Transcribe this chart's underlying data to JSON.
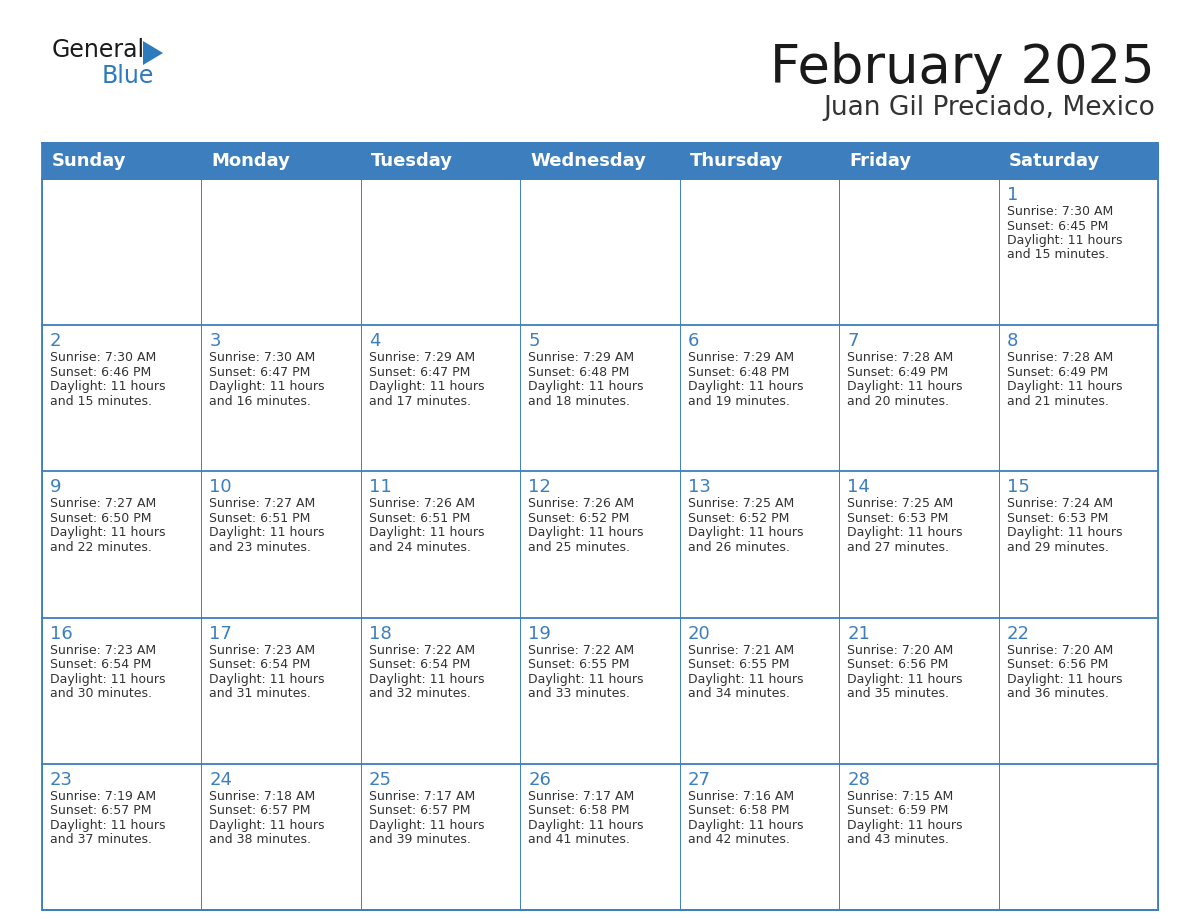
{
  "title": "February 2025",
  "subtitle": "Juan Gil Preciado, Mexico",
  "header_bg_color": "#3d7ebf",
  "header_text_color": "#ffffff",
  "border_color": "#3d7ebf",
  "title_color": "#1a1a1a",
  "subtitle_color": "#333333",
  "day_number_color": "#3d7ebf",
  "cell_text_color": "#333333",
  "logo_black": "#1a1a1a",
  "logo_blue": "#2e7abf",
  "days_of_week": [
    "Sunday",
    "Monday",
    "Tuesday",
    "Wednesday",
    "Thursday",
    "Friday",
    "Saturday"
  ],
  "calendar_data": [
    [
      null,
      null,
      null,
      null,
      null,
      null,
      {
        "day": 1,
        "sunrise": "7:30 AM",
        "sunset": "6:45 PM",
        "daylight_hrs": 11,
        "daylight_mins": 15
      }
    ],
    [
      {
        "day": 2,
        "sunrise": "7:30 AM",
        "sunset": "6:46 PM",
        "daylight_hrs": 11,
        "daylight_mins": 15
      },
      {
        "day": 3,
        "sunrise": "7:30 AM",
        "sunset": "6:47 PM",
        "daylight_hrs": 11,
        "daylight_mins": 16
      },
      {
        "day": 4,
        "sunrise": "7:29 AM",
        "sunset": "6:47 PM",
        "daylight_hrs": 11,
        "daylight_mins": 17
      },
      {
        "day": 5,
        "sunrise": "7:29 AM",
        "sunset": "6:48 PM",
        "daylight_hrs": 11,
        "daylight_mins": 18
      },
      {
        "day": 6,
        "sunrise": "7:29 AM",
        "sunset": "6:48 PM",
        "daylight_hrs": 11,
        "daylight_mins": 19
      },
      {
        "day": 7,
        "sunrise": "7:28 AM",
        "sunset": "6:49 PM",
        "daylight_hrs": 11,
        "daylight_mins": 20
      },
      {
        "day": 8,
        "sunrise": "7:28 AM",
        "sunset": "6:49 PM",
        "daylight_hrs": 11,
        "daylight_mins": 21
      }
    ],
    [
      {
        "day": 9,
        "sunrise": "7:27 AM",
        "sunset": "6:50 PM",
        "daylight_hrs": 11,
        "daylight_mins": 22
      },
      {
        "day": 10,
        "sunrise": "7:27 AM",
        "sunset": "6:51 PM",
        "daylight_hrs": 11,
        "daylight_mins": 23
      },
      {
        "day": 11,
        "sunrise": "7:26 AM",
        "sunset": "6:51 PM",
        "daylight_hrs": 11,
        "daylight_mins": 24
      },
      {
        "day": 12,
        "sunrise": "7:26 AM",
        "sunset": "6:52 PM",
        "daylight_hrs": 11,
        "daylight_mins": 25
      },
      {
        "day": 13,
        "sunrise": "7:25 AM",
        "sunset": "6:52 PM",
        "daylight_hrs": 11,
        "daylight_mins": 26
      },
      {
        "day": 14,
        "sunrise": "7:25 AM",
        "sunset": "6:53 PM",
        "daylight_hrs": 11,
        "daylight_mins": 27
      },
      {
        "day": 15,
        "sunrise": "7:24 AM",
        "sunset": "6:53 PM",
        "daylight_hrs": 11,
        "daylight_mins": 29
      }
    ],
    [
      {
        "day": 16,
        "sunrise": "7:23 AM",
        "sunset": "6:54 PM",
        "daylight_hrs": 11,
        "daylight_mins": 30
      },
      {
        "day": 17,
        "sunrise": "7:23 AM",
        "sunset": "6:54 PM",
        "daylight_hrs": 11,
        "daylight_mins": 31
      },
      {
        "day": 18,
        "sunrise": "7:22 AM",
        "sunset": "6:54 PM",
        "daylight_hrs": 11,
        "daylight_mins": 32
      },
      {
        "day": 19,
        "sunrise": "7:22 AM",
        "sunset": "6:55 PM",
        "daylight_hrs": 11,
        "daylight_mins": 33
      },
      {
        "day": 20,
        "sunrise": "7:21 AM",
        "sunset": "6:55 PM",
        "daylight_hrs": 11,
        "daylight_mins": 34
      },
      {
        "day": 21,
        "sunrise": "7:20 AM",
        "sunset": "6:56 PM",
        "daylight_hrs": 11,
        "daylight_mins": 35
      },
      {
        "day": 22,
        "sunrise": "7:20 AM",
        "sunset": "6:56 PM",
        "daylight_hrs": 11,
        "daylight_mins": 36
      }
    ],
    [
      {
        "day": 23,
        "sunrise": "7:19 AM",
        "sunset": "6:57 PM",
        "daylight_hrs": 11,
        "daylight_mins": 37
      },
      {
        "day": 24,
        "sunrise": "7:18 AM",
        "sunset": "6:57 PM",
        "daylight_hrs": 11,
        "daylight_mins": 38
      },
      {
        "day": 25,
        "sunrise": "7:17 AM",
        "sunset": "6:57 PM",
        "daylight_hrs": 11,
        "daylight_mins": 39
      },
      {
        "day": 26,
        "sunrise": "7:17 AM",
        "sunset": "6:58 PM",
        "daylight_hrs": 11,
        "daylight_mins": 41
      },
      {
        "day": 27,
        "sunrise": "7:16 AM",
        "sunset": "6:58 PM",
        "daylight_hrs": 11,
        "daylight_mins": 42
      },
      {
        "day": 28,
        "sunrise": "7:15 AM",
        "sunset": "6:59 PM",
        "daylight_hrs": 11,
        "daylight_mins": 43
      },
      null
    ]
  ]
}
